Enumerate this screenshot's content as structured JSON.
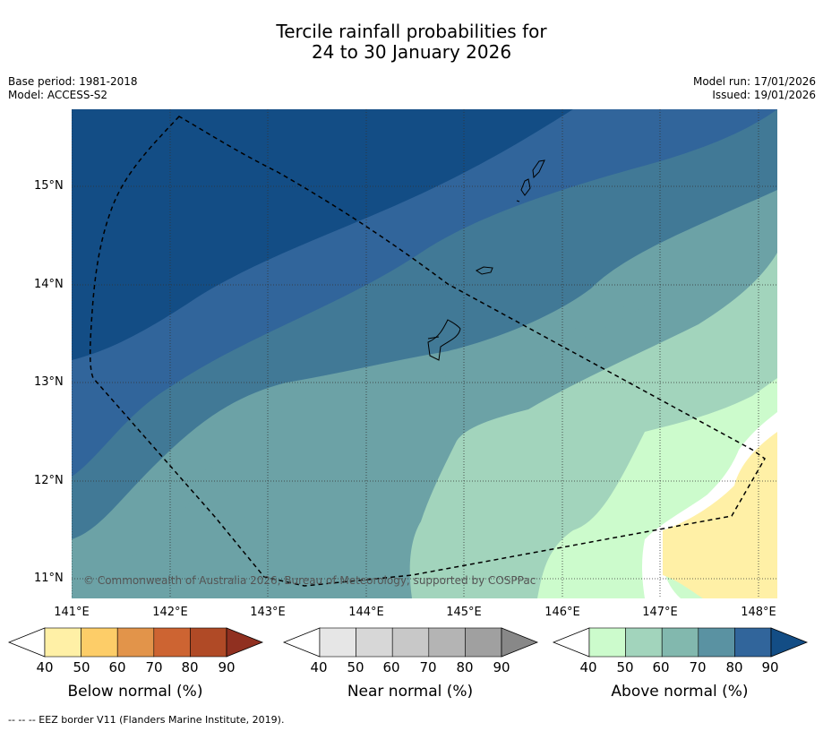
{
  "title": {
    "line1": "Tercile rainfall probabilities for",
    "line2": "24 to 30 January 2026"
  },
  "meta": {
    "base_period": "Base period: 1981-2018",
    "model": "Model: ACCESS-S2",
    "model_run": "Model run: 17/01/2026",
    "issued": "Issued: 19/01/2026"
  },
  "map": {
    "lat_labels": [
      "15°N",
      "14°N",
      "13°N",
      "12°N",
      "11°N"
    ],
    "lon_labels": [
      "141°E",
      "142°E",
      "143°E",
      "144°E",
      "145°E",
      "146°E",
      "147°E",
      "148°E"
    ],
    "copyright": "© Commonwealth of Australia 2026, Bureau of Meteorology, supported by COSPPac"
  },
  "colorbars": [
    {
      "title": "Below normal (%)",
      "ticks": [
        "40",
        "50",
        "60",
        "70",
        "80",
        "90"
      ],
      "colors": [
        "#fff0a6",
        "#fdcd68",
        "#e2944a",
        "#cd6432",
        "#b04a26",
        "#903020"
      ]
    },
    {
      "title": "Near normal (%)",
      "ticks": [
        "40",
        "50",
        "60",
        "70",
        "80",
        "90"
      ],
      "colors": [
        "#e6e6e6",
        "#d7d7d7",
        "#c8c8c8",
        "#b4b4b4",
        "#a0a0a0",
        "#888888"
      ]
    },
    {
      "title": "Above normal (%)",
      "ticks": [
        "40",
        "50",
        "60",
        "70",
        "80",
        "90"
      ],
      "colors": [
        "#ccfbcc",
        "#a2d4bc",
        "#82b8ae",
        "#5a92a2",
        "#31659b",
        "#134d85"
      ]
    }
  ],
  "footnote": "--  --  -- EEZ border V11 (Flanders Marine Institute, 2019)."
}
